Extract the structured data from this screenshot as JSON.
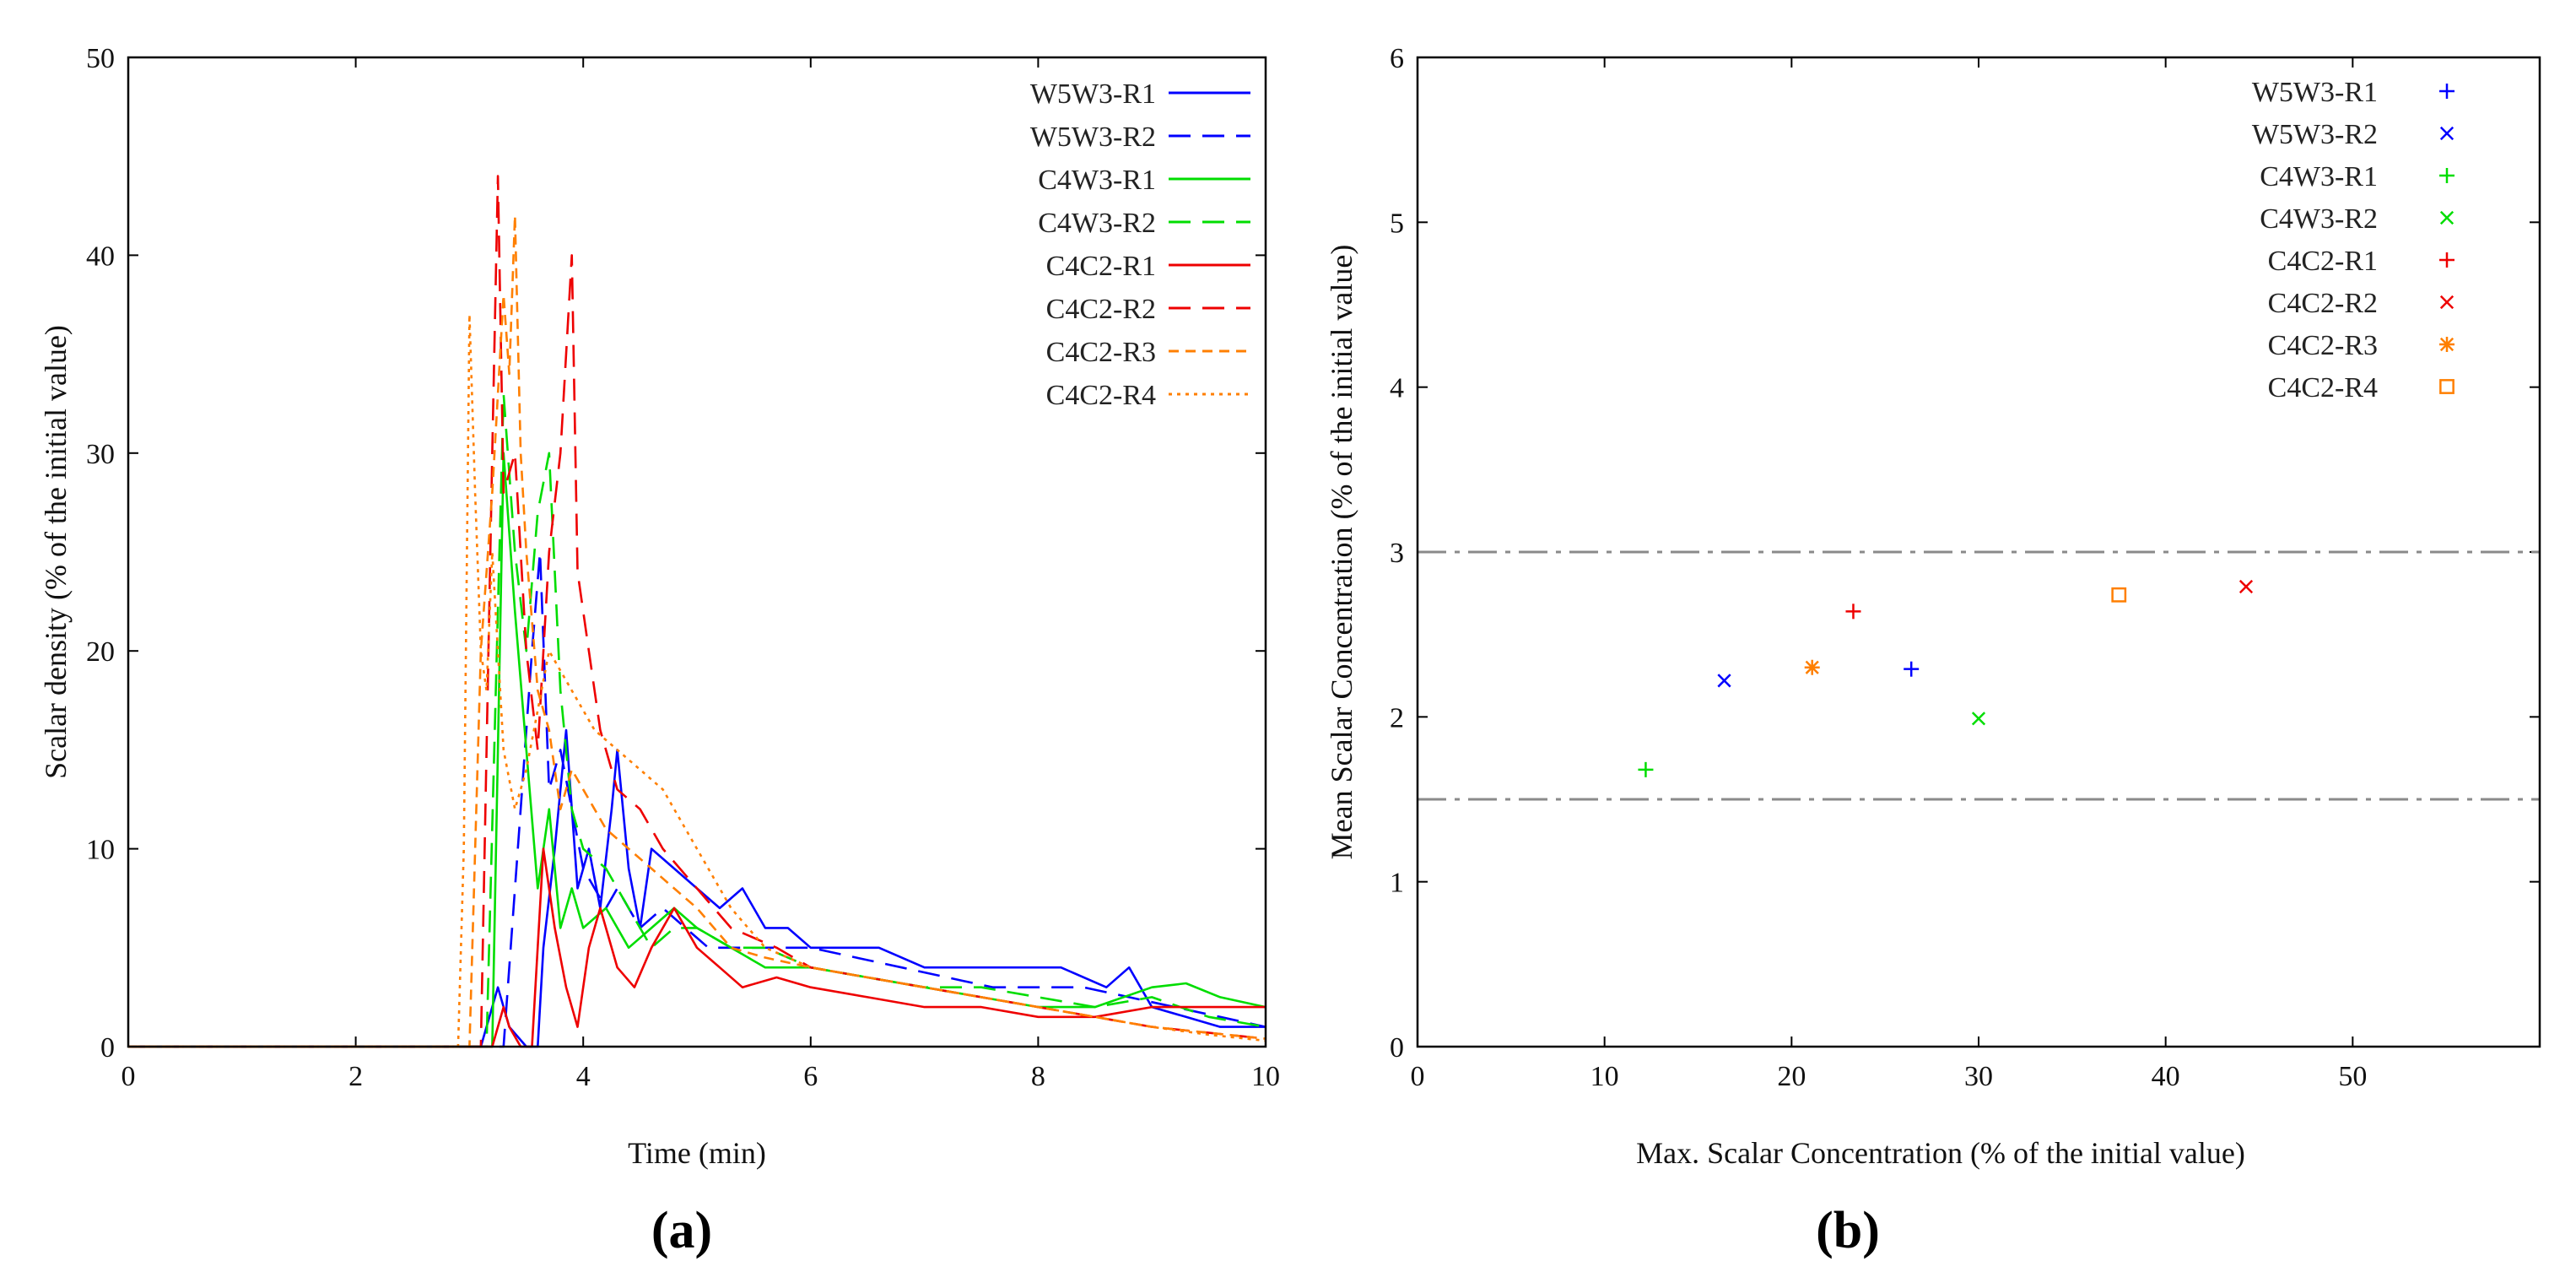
{
  "chart_data": [
    {
      "id": "a",
      "type": "line",
      "panel_label": "(a)",
      "xlabel": "Time (min)",
      "ylabel": "Scalar density (% of the initial value)",
      "xlim": [
        0,
        10
      ],
      "ylim": [
        0,
        50
      ],
      "xticks": [
        0,
        2,
        4,
        6,
        8,
        10
      ],
      "yticks": [
        0,
        10,
        20,
        30,
        40,
        50
      ],
      "legend_position": "top-right",
      "series": [
        {
          "name": "W5W3-R1",
          "color": "#0000ff",
          "dash": "solid",
          "x": [
            0,
            3.1,
            3.25,
            3.35,
            3.5,
            3.6,
            3.65,
            3.75,
            3.85,
            3.95,
            4.05,
            4.15,
            4.25,
            4.3,
            4.4,
            4.5,
            4.6,
            4.8,
            5.0,
            5.2,
            5.4,
            5.6,
            5.8,
            6.0,
            6.3,
            6.6,
            7.0,
            7.4,
            7.8,
            8.2,
            8.6,
            8.8,
            9.0,
            9.3,
            9.6,
            10
          ],
          "y": [
            0,
            0,
            3,
            1,
            0,
            0,
            5,
            10,
            16,
            8,
            10,
            7,
            12,
            15,
            9,
            6,
            10,
            9,
            8,
            7,
            8,
            6,
            6,
            5,
            5,
            5,
            4,
            4,
            4,
            4,
            3,
            4,
            2,
            1.5,
            1,
            1
          ]
        },
        {
          "name": "W5W3-R2",
          "color": "#0000ff",
          "dash": "long",
          "x": [
            0,
            3.3,
            3.45,
            3.55,
            3.62,
            3.7,
            3.8,
            3.9,
            4.0,
            4.1,
            4.2,
            4.3,
            4.5,
            4.7,
            4.9,
            5.1,
            5.3,
            5.6,
            6.0,
            6.4,
            6.8,
            7.2,
            7.6,
            8.0,
            8.4,
            8.8,
            9.2,
            9.6,
            10
          ],
          "y": [
            0,
            0,
            12,
            20,
            25,
            13,
            15,
            12,
            9,
            8,
            7,
            8,
            6,
            7,
            6,
            5,
            5,
            5,
            5,
            4.5,
            4,
            3.5,
            3,
            3,
            3,
            2.5,
            2,
            1.5,
            1
          ]
        },
        {
          "name": "C4W3-R1",
          "color": "#00dd00",
          "dash": "solid",
          "x": [
            0,
            3.2,
            3.3,
            3.4,
            3.5,
            3.6,
            3.7,
            3.8,
            3.9,
            4.0,
            4.2,
            4.4,
            4.6,
            4.8,
            5.0,
            5.3,
            5.6,
            6.0,
            6.5,
            7.0,
            7.5,
            8.0,
            8.5,
            9.0,
            9.3,
            9.6,
            10
          ],
          "y": [
            0,
            0,
            30,
            22,
            15,
            8,
            12,
            6,
            8,
            6,
            7,
            5,
            6,
            7,
            6,
            5,
            4,
            4,
            3.5,
            3,
            2.5,
            2,
            2,
            3,
            3.2,
            2.5,
            2
          ]
        },
        {
          "name": "C4W3-R2",
          "color": "#00dd00",
          "dash": "long",
          "x": [
            0,
            3.15,
            3.3,
            3.4,
            3.5,
            3.6,
            3.7,
            3.8,
            3.9,
            4.0,
            4.2,
            4.4,
            4.6,
            4.8,
            5.0,
            5.3,
            5.6,
            6.0,
            6.5,
            7.0,
            7.5,
            8.0,
            8.5,
            9.0,
            9.5,
            10
          ],
          "y": [
            0,
            0,
            33,
            25,
            20,
            27,
            30,
            18,
            12,
            10,
            9,
            7,
            5,
            6,
            6,
            5,
            5,
            4,
            3.5,
            3,
            3,
            2.5,
            2,
            2.5,
            1.5,
            1
          ]
        },
        {
          "name": "C4C2-R1",
          "color": "#ee0000",
          "dash": "solid",
          "x": [
            0,
            3.2,
            3.3,
            3.35,
            3.45,
            3.55,
            3.65,
            3.75,
            3.85,
            3.95,
            4.05,
            4.15,
            4.3,
            4.45,
            4.6,
            4.8,
            5.0,
            5.2,
            5.4,
            5.7,
            6.0,
            6.5,
            7.0,
            7.5,
            8.0,
            8.5,
            9.0,
            9.5,
            10
          ],
          "y": [
            0,
            0,
            2,
            1,
            0,
            0,
            10,
            6,
            3,
            1,
            5,
            7,
            4,
            3,
            5,
            7,
            5,
            4,
            3,
            3.5,
            3,
            2.5,
            2,
            2,
            1.5,
            1.5,
            2,
            2,
            2
          ]
        },
        {
          "name": "C4C2-R2",
          "color": "#ee0000",
          "dash": "long",
          "x": [
            0,
            3.1,
            3.2,
            3.25,
            3.3,
            3.4,
            3.5,
            3.6,
            3.7,
            3.8,
            3.9,
            3.95,
            4.05,
            4.15,
            4.3,
            4.5,
            4.7,
            5.0,
            5.3,
            5.7,
            6.0,
            6.5,
            7.0,
            7.5,
            8.0,
            8.5,
            9.0,
            9.5,
            10
          ],
          "y": [
            0,
            0,
            30,
            44,
            28,
            30,
            20,
            15,
            25,
            30,
            40,
            24,
            20,
            16,
            13,
            12,
            10,
            8,
            6,
            5,
            4,
            3.5,
            3,
            2.5,
            2,
            1.5,
            1,
            0.7,
            0.4
          ]
        },
        {
          "name": "C4C2-R3",
          "color": "#ff7f00",
          "dash": "medium",
          "x": [
            0,
            3.0,
            3.1,
            3.2,
            3.3,
            3.35,
            3.4,
            3.45,
            3.5,
            3.6,
            3.7,
            3.8,
            3.9,
            4.0,
            4.2,
            4.4,
            4.6,
            4.8,
            5.0,
            5.3,
            5.6,
            6.0,
            6.5,
            7.0,
            7.5,
            8.0,
            8.5,
            9.0,
            9.5,
            10
          ],
          "y": [
            0,
            0,
            20,
            28,
            38,
            34,
            42,
            30,
            25,
            18,
            16,
            12,
            14,
            13,
            11,
            10,
            9,
            8,
            7,
            5,
            4.5,
            4,
            3.5,
            3,
            2.5,
            2,
            1.5,
            1,
            0.7,
            0.4
          ]
        },
        {
          "name": "C4C2-R4",
          "color": "#ff7f00",
          "dash": "dotted",
          "x": [
            0,
            2.9,
            2.95,
            3.0,
            3.05,
            3.1,
            3.15,
            3.2,
            3.3,
            3.4,
            3.5,
            3.7,
            3.9,
            4.1,
            4.3,
            4.5,
            4.7,
            5.0,
            5.3,
            5.6,
            6.0,
            6.5,
            7.0,
            7.5,
            8.0,
            8.5,
            9.0,
            9.5,
            10
          ],
          "y": [
            0,
            0,
            10,
            37,
            28,
            20,
            18,
            25,
            15,
            12,
            14,
            20,
            18,
            16,
            15,
            14,
            13,
            10,
            7,
            5,
            4,
            3.5,
            3,
            2.5,
            2,
            1.5,
            1,
            0.6,
            0.3
          ]
        }
      ]
    },
    {
      "id": "b",
      "type": "scatter",
      "panel_label": "(b)",
      "xlabel": "Max. Scalar Concentration (% of the initial value)",
      "ylabel": "Mean Scalar Concentration (% of the initial value)",
      "xlim": [
        0,
        60
      ],
      "ylim": [
        0,
        6
      ],
      "xticks": [
        0,
        10,
        20,
        30,
        40,
        50
      ],
      "yticks": [
        0,
        1,
        2,
        3,
        4,
        5,
        6
      ],
      "legend_position": "top-right",
      "reference_lines": [
        {
          "y": 3.0,
          "color": "#8a8a8a",
          "style": "dash-dot"
        },
        {
          "y": 1.5,
          "color": "#8a8a8a",
          "style": "dash-dot"
        }
      ],
      "series": [
        {
          "name": "W5W3-R1",
          "color": "#0000ff",
          "marker": "plus",
          "x": 26.4,
          "y": 2.29
        },
        {
          "name": "W5W3-R2",
          "color": "#0000ff",
          "marker": "cross",
          "x": 16.4,
          "y": 2.22
        },
        {
          "name": "C4W3-R1",
          "color": "#00dd00",
          "marker": "plus",
          "x": 12.2,
          "y": 1.68
        },
        {
          "name": "C4W3-R2",
          "color": "#00dd00",
          "marker": "cross",
          "x": 30.0,
          "y": 1.99
        },
        {
          "name": "C4C2-R1",
          "color": "#ee0000",
          "marker": "plus",
          "x": 23.3,
          "y": 2.64
        },
        {
          "name": "C4C2-R2",
          "color": "#ee0000",
          "marker": "cross",
          "x": 44.3,
          "y": 2.79
        },
        {
          "name": "C4C2-R3",
          "color": "#ff7f00",
          "marker": "star",
          "x": 21.1,
          "y": 2.3
        },
        {
          "name": "C4C2-R4",
          "color": "#ff7f00",
          "marker": "square",
          "x": 37.5,
          "y": 2.74
        }
      ]
    }
  ]
}
